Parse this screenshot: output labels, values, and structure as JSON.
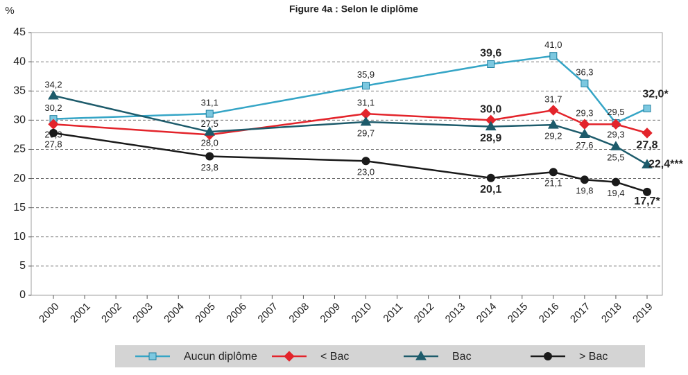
{
  "chart_data": {
    "type": "line",
    "title": "Figure 4a : Selon le diplôme",
    "y_label": "%",
    "x": [
      2000,
      2005,
      2010,
      2014,
      2016,
      2017,
      2018,
      2019
    ],
    "xlim": [
      2000,
      2019
    ],
    "xticks": [
      2000,
      2001,
      2002,
      2003,
      2004,
      2005,
      2006,
      2007,
      2008,
      2009,
      2010,
      2011,
      2012,
      2013,
      2014,
      2015,
      2016,
      2017,
      2018,
      2019
    ],
    "ylim": [
      0,
      45
    ],
    "yticks": [
      0,
      5,
      10,
      15,
      20,
      25,
      30,
      35,
      40,
      45
    ],
    "grid": true,
    "series": [
      {
        "name": "Aucun diplôme",
        "color": "#35a5c6",
        "marker": "square",
        "values": [
          30.2,
          31.1,
          35.9,
          39.6,
          41.0,
          36.3,
          29.5,
          32.0
        ],
        "value_labels": [
          "30,2",
          "31,1",
          "35,9",
          "39,6",
          "41,0",
          "36,3",
          "29,5",
          "32,0*"
        ]
      },
      {
        "name": "< Bac",
        "color": "#e3242b",
        "marker": "diamond",
        "values": [
          29.3,
          27.5,
          31.1,
          30.0,
          31.7,
          29.3,
          29.3,
          27.8
        ],
        "value_labels": [
          "29,3",
          "27,5",
          "31,1",
          "30,0",
          "31,7",
          "29,3",
          "29,3",
          "27,8"
        ]
      },
      {
        "name": "Bac",
        "color": "#1d5b6b",
        "marker": "triangle",
        "values": [
          34.2,
          28.0,
          29.7,
          28.9,
          29.2,
          27.6,
          25.5,
          22.4
        ],
        "value_labels": [
          "34,2",
          "28,0",
          "29,7",
          "28,9",
          "29,2",
          "27,6",
          "25,5",
          "22,4***"
        ]
      },
      {
        "name": "> Bac",
        "color": "#1a1a1a",
        "marker": "circle",
        "values": [
          27.8,
          23.8,
          23.0,
          20.1,
          21.1,
          19.8,
          19.4,
          17.7
        ],
        "value_labels": [
          "27,8",
          "23,8",
          "23,0",
          "20,1",
          "21,1",
          "19,8",
          "19,4",
          "17,7*"
        ]
      }
    ]
  }
}
